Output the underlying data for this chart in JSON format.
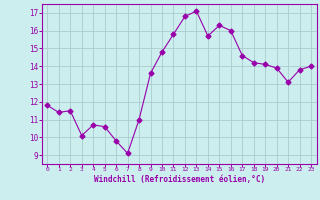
{
  "x": [
    0,
    1,
    2,
    3,
    4,
    5,
    6,
    7,
    8,
    9,
    10,
    11,
    12,
    13,
    14,
    15,
    16,
    17,
    18,
    19,
    20,
    21,
    22,
    23
  ],
  "y": [
    11.8,
    11.4,
    11.5,
    10.1,
    10.7,
    10.6,
    9.8,
    9.1,
    11.0,
    13.6,
    14.8,
    15.8,
    16.8,
    17.1,
    15.7,
    16.3,
    16.0,
    14.6,
    14.2,
    14.1,
    13.9,
    13.1,
    13.8,
    14.0
  ],
  "line_color": "#9900aa",
  "marker": "D",
  "marker_size": 2.5,
  "bg_color": "#cceeee",
  "grid_color": "#aacccc",
  "xlabel": "Windchill (Refroidissement éolien,°C)",
  "xlabel_color": "#9900aa",
  "ylabel_ticks": [
    9,
    10,
    11,
    12,
    13,
    14,
    15,
    16,
    17
  ],
  "xtick_labels": [
    "0",
    "1",
    "2",
    "3",
    "4",
    "5",
    "6",
    "7",
    "8",
    "9",
    "10",
    "11",
    "12",
    "13",
    "14",
    "15",
    "16",
    "17",
    "18",
    "19",
    "20",
    "21",
    "22",
    "23"
  ],
  "ylim": [
    8.5,
    17.5
  ],
  "xlim": [
    -0.5,
    23.5
  ]
}
